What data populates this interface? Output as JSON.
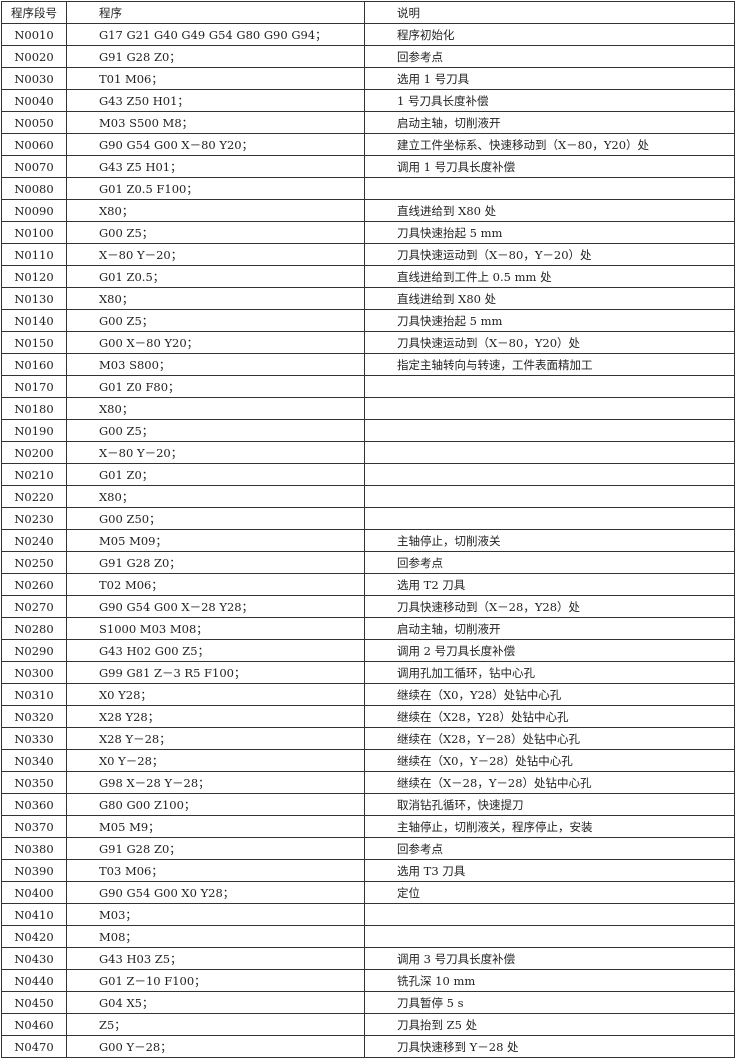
{
  "headers": {
    "number": "程序段号",
    "program": "程序",
    "description": "说明"
  },
  "rows": [
    [
      "N0010",
      "G17 G21 G40 G49 G54 G80 G90 G94；",
      "程序初始化"
    ],
    [
      "N0020",
      "G91 G28 Z0；",
      "回参考点"
    ],
    [
      "N0030",
      "T01 M06；",
      "选用 1 号刀具"
    ],
    [
      "N0040",
      "G43 Z50 H01；",
      "1 号刀具长度补偿"
    ],
    [
      "N0050",
      "M03 S500 M8；",
      "启动主轴，切削液开"
    ],
    [
      "N0060",
      "G90 G54 G00 X－80 Y20；",
      "建立工件坐标系、快速移动到（X－80，Y20）处"
    ],
    [
      "N0070",
      "G43 Z5 H01；",
      "调用 1 号刀具长度补偿"
    ],
    [
      "N0080",
      "G01 Z0.5 F100；",
      ""
    ],
    [
      "N0090",
      "X80；",
      "直线进给到 X80 处"
    ],
    [
      "N0100",
      "G00 Z5；",
      "刀具快速抬起 5 mm"
    ],
    [
      "N0110",
      "X－80 Y－20；",
      "刀具快速运动到（X－80，Y－20）处"
    ],
    [
      "N0120",
      "G01 Z0.5；",
      "直线进给到工件上 0.5 mm 处"
    ],
    [
      "N0130",
      "X80；",
      "直线进给到 X80 处"
    ],
    [
      "N0140",
      "G00 Z5；",
      "刀具快速抬起 5 mm"
    ],
    [
      "N0150",
      "G00 X－80 Y20；",
      "刀具快速运动到（X－80，Y20）处"
    ],
    [
      "N0160",
      "M03 S800；",
      "指定主轴转向与转速，工件表面精加工"
    ],
    [
      "N0170",
      "G01 Z0 F80；",
      ""
    ],
    [
      "N0180",
      "X80；",
      ""
    ],
    [
      "N0190",
      "G00 Z5；",
      ""
    ],
    [
      "N0200",
      "X－80 Y－20；",
      ""
    ],
    [
      "N0210",
      "G01 Z0；",
      ""
    ],
    [
      "N0220",
      "X80；",
      ""
    ],
    [
      "N0230",
      "G00 Z50；",
      ""
    ],
    [
      "N0240",
      "M05 M09；",
      "主轴停止，切削液关"
    ],
    [
      "N0250",
      "G91 G28 Z0；",
      "回参考点"
    ],
    [
      "N0260",
      "T02 M06；",
      "选用 T2 刀具"
    ],
    [
      "N0270",
      "G90 G54 G00 X－28 Y28；",
      "刀具快速移动到（X－28，Y28）处"
    ],
    [
      "N0280",
      "S1000 M03 M08；",
      "启动主轴，切削液开"
    ],
    [
      "N0290",
      "G43 H02 G00 Z5；",
      "调用 2 号刀具长度补偿"
    ],
    [
      "N0300",
      "G99 G81 Z－3 R5 F100；",
      "调用孔加工循环，钻中心孔"
    ],
    [
      "N0310",
      "X0 Y28；",
      "继续在（X0，Y28）处钻中心孔"
    ],
    [
      "N0320",
      "X28 Y28；",
      "继续在（X28，Y28）处钻中心孔"
    ],
    [
      "N0330",
      "X28 Y－28；",
      "继续在（X28，Y－28）处钻中心孔"
    ],
    [
      "N0340",
      "X0 Y－28；",
      "继续在（X0，Y－28）处钻中心孔"
    ],
    [
      "N0350",
      "G98 X－28 Y－28；",
      "继续在（X－28，Y－28）处钻中心孔"
    ],
    [
      "N0360",
      "G80 G00 Z100；",
      "取消钻孔循环，快速提刀"
    ],
    [
      "N0370",
      "M05 M9；",
      "主轴停止，切削液关，程序停止，安装"
    ],
    [
      "N0380",
      "G91 G28 Z0；",
      "回参考点"
    ],
    [
      "N0390",
      "T03 M06；",
      "选用 T3 刀具"
    ],
    [
      "N0400",
      "G90 G54 G00 X0 Y28；",
      "定位"
    ],
    [
      "N0410",
      "M03；",
      ""
    ],
    [
      "N0420",
      "M08；",
      ""
    ],
    [
      "N0430",
      "G43 H03 Z5；",
      "调用 3 号刀具长度补偿"
    ],
    [
      "N0440",
      "G01 Z－10 F100；",
      "铣孔深 10 mm"
    ],
    [
      "N0450",
      "G04 X5；",
      "刀具暂停 5 s"
    ],
    [
      "N0460",
      "Z5；",
      "刀具抬到 Z5 处"
    ],
    [
      "N0470",
      "G00 Y－28；",
      "刀具快速移到 Y－28 处"
    ]
  ]
}
